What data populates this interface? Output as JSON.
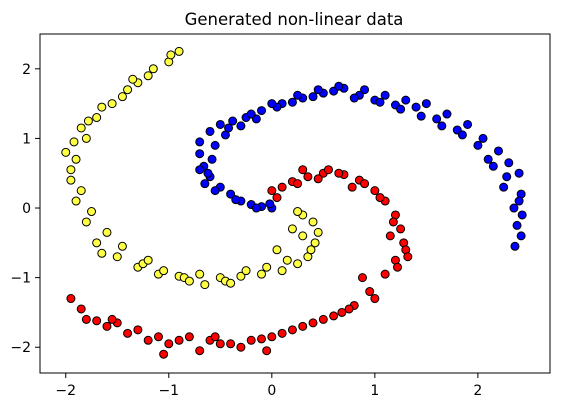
{
  "chart_data": {
    "type": "scatter",
    "title": "Generated non-linear data",
    "xlabel": "",
    "ylabel": "",
    "xlim": [
      -2.25,
      2.7
    ],
    "ylim": [
      -2.37,
      2.5
    ],
    "xticks": [
      -2,
      -1,
      0,
      1,
      2
    ],
    "yticks": [
      -2,
      -1,
      0,
      1,
      2
    ],
    "xtick_labels": [
      "−2",
      "−1",
      "0",
      "1",
      "2"
    ],
    "ytick_labels": [
      "−2",
      "−1",
      "0",
      "1",
      "2"
    ],
    "grid": false,
    "legend": false,
    "series": [
      {
        "color": "#0000ff",
        "x": [
          0.0,
          -0.1,
          -0.2,
          -0.3,
          -0.4,
          -0.5,
          -0.6,
          -0.66,
          -0.7,
          -0.7,
          -0.6,
          -0.5,
          -0.38,
          -0.25,
          -0.1,
          0.1,
          0.3,
          0.5,
          0.7,
          0.9,
          1.1,
          1.3,
          1.5,
          1.7,
          1.9,
          2.05,
          2.2,
          2.3,
          2.4,
          2.42,
          2.43,
          2.42,
          -0.02,
          -0.15,
          -0.35,
          -0.55,
          -0.62,
          -0.58,
          -0.45,
          -0.3,
          -0.15,
          0.05,
          0.2,
          0.4,
          0.6,
          0.85,
          1.0,
          1.2,
          1.4,
          1.6,
          1.8,
          2.0,
          2.15,
          2.25,
          2.35,
          2.38,
          -0.7,
          -0.65,
          -0.55,
          -0.42,
          -0.2,
          0.0,
          0.25,
          0.45,
          0.65,
          0.8,
          1.05,
          1.25,
          1.45,
          1.65,
          1.85,
          2.1,
          2.28,
          2.4,
          2.36
        ],
        "y": [
          0.0,
          0.02,
          0.05,
          0.1,
          0.2,
          0.3,
          0.45,
          0.6,
          0.78,
          0.95,
          1.1,
          1.2,
          1.25,
          1.3,
          1.4,
          1.5,
          1.58,
          1.65,
          1.72,
          1.7,
          1.62,
          1.55,
          1.5,
          1.35,
          1.2,
          1.0,
          0.82,
          0.65,
          0.5,
          0.2,
          -0.1,
          -0.4,
          0.06,
          0.0,
          0.12,
          0.25,
          0.5,
          0.7,
          1.05,
          1.18,
          1.28,
          1.45,
          1.52,
          1.6,
          1.68,
          1.62,
          1.55,
          1.48,
          1.45,
          1.28,
          1.12,
          0.9,
          0.6,
          0.3,
          0.0,
          -0.25,
          0.55,
          0.35,
          0.9,
          1.15,
          1.35,
          1.5,
          1.62,
          1.7,
          1.75,
          1.58,
          1.52,
          1.42,
          1.32,
          1.18,
          1.05,
          0.7,
          0.45,
          0.1,
          -0.55
        ]
      },
      {
        "color": "#ff0000",
        "x": [
          0.0,
          0.1,
          0.2,
          0.35,
          0.5,
          0.7,
          0.85,
          1.0,
          1.1,
          1.2,
          1.25,
          1.28,
          1.2,
          1.1,
          0.95,
          0.8,
          0.6,
          0.4,
          0.2,
          0.0,
          -0.2,
          -0.4,
          -0.6,
          -0.8,
          -1.0,
          -1.2,
          -1.4,
          -1.6,
          -1.8,
          -1.95,
          0.05,
          0.25,
          0.45,
          0.65,
          0.9,
          1.05,
          1.18,
          1.3,
          1.22,
          1.0,
          0.75,
          0.5,
          0.3,
          0.1,
          -0.1,
          -0.3,
          -0.5,
          -0.7,
          -0.9,
          -1.1,
          -1.3,
          -1.5,
          -1.7,
          -1.85,
          0.3,
          0.55,
          0.78,
          1.15,
          1.32,
          0.88,
          0.68,
          -0.05,
          -0.55,
          -1.05,
          -1.55
        ],
        "y": [
          0.25,
          0.3,
          0.38,
          0.45,
          0.5,
          0.48,
          0.4,
          0.25,
          0.1,
          -0.1,
          -0.3,
          -0.5,
          -0.75,
          -0.95,
          -1.2,
          -1.4,
          -1.55,
          -1.65,
          -1.75,
          -1.85,
          -1.9,
          -1.95,
          -1.9,
          -1.85,
          -1.95,
          -1.9,
          -1.8,
          -1.7,
          -1.6,
          -1.3,
          0.15,
          0.35,
          0.42,
          0.5,
          0.35,
          0.15,
          -0.2,
          -0.6,
          -0.85,
          -1.3,
          -1.45,
          -1.6,
          -1.7,
          -1.8,
          -1.88,
          -2.0,
          -1.95,
          -2.05,
          -1.9,
          -1.85,
          -1.75,
          -1.65,
          -1.62,
          -1.45,
          0.55,
          0.55,
          0.3,
          -0.4,
          -0.7,
          -1.0,
          -1.5,
          -2.05,
          -1.85,
          -2.1,
          -1.6
        ]
      },
      {
        "color": "#ffff44",
        "x": [
          0.3,
          0.4,
          0.45,
          0.42,
          0.35,
          0.25,
          0.1,
          -0.1,
          -0.3,
          -0.5,
          -0.7,
          -0.9,
          -1.1,
          -1.3,
          -1.5,
          -1.7,
          -1.8,
          -1.9,
          -1.95,
          -1.9,
          -1.8,
          -1.7,
          -1.55,
          -1.4,
          -1.2,
          -1.0,
          -0.9,
          0.2,
          0.38,
          0.3,
          0.15,
          -0.05,
          -0.25,
          -0.45,
          -0.65,
          -0.85,
          -1.05,
          -1.25,
          -1.45,
          -1.6,
          -1.75,
          -1.85,
          -1.95,
          -2.0,
          -1.85,
          -1.65,
          -1.45,
          -1.3,
          -1.15,
          -0.98,
          0.25,
          0.05,
          -0.4,
          -0.8,
          -1.2,
          -1.65,
          -1.92,
          -1.78,
          -1.35
        ],
        "y": [
          -0.1,
          -0.2,
          -0.35,
          -0.5,
          -0.7,
          -0.8,
          -0.9,
          -0.95,
          -0.98,
          -1.0,
          -0.95,
          -0.98,
          -0.95,
          -0.85,
          -0.7,
          -0.5,
          -0.2,
          0.1,
          0.4,
          0.7,
          1.0,
          1.3,
          1.5,
          1.7,
          1.9,
          2.1,
          2.25,
          -0.3,
          -0.6,
          -0.4,
          -0.75,
          -0.85,
          -0.9,
          -1.05,
          -1.1,
          -1.0,
          -0.9,
          -0.8,
          -0.55,
          -0.35,
          -0.05,
          0.25,
          0.55,
          0.8,
          1.15,
          1.45,
          1.6,
          1.8,
          2.0,
          2.2,
          -0.05,
          -0.6,
          -1.08,
          -1.05,
          -0.75,
          -0.65,
          0.95,
          1.25,
          1.85
        ]
      }
    ]
  }
}
